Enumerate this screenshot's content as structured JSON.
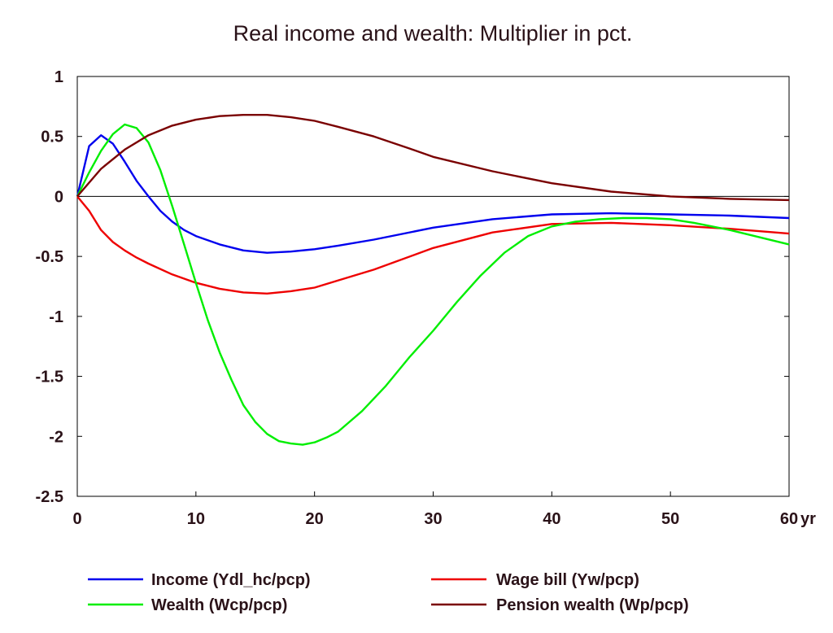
{
  "chart_data": {
    "type": "line",
    "title": "Real income and wealth: Multiplier in pct.",
    "xlabel": "",
    "ylabel": "",
    "x_unit_label": "yr",
    "xlim": [
      0,
      60
    ],
    "ylim": [
      -2.5,
      1
    ],
    "x_ticks": [
      "0",
      "10",
      "20",
      "30",
      "40",
      "50",
      "60"
    ],
    "y_ticks": [
      "1",
      "0.5",
      "0",
      "-0.5",
      "-1",
      "-1.5",
      "-2",
      "-2.5"
    ],
    "grid": false,
    "zero_line": true,
    "legend_position": "bottom",
    "series": [
      {
        "name": "Income (Ydl_hc/pcp)",
        "color": "#0000ee",
        "x": [
          0,
          1,
          2,
          3,
          4,
          5,
          6,
          7,
          8,
          9,
          10,
          12,
          14,
          16,
          18,
          20,
          22,
          25,
          30,
          35,
          40,
          45,
          50,
          55,
          60
        ],
        "y": [
          0,
          0.42,
          0.51,
          0.44,
          0.29,
          0.13,
          0.0,
          -0.12,
          -0.21,
          -0.28,
          -0.33,
          -0.4,
          -0.45,
          -0.47,
          -0.46,
          -0.44,
          -0.41,
          -0.36,
          -0.26,
          -0.19,
          -0.15,
          -0.14,
          -0.15,
          -0.16,
          -0.18
        ]
      },
      {
        "name": "Wage bill (Yw/pcp)",
        "color": "#ee0000",
        "x": [
          0,
          1,
          2,
          3,
          4,
          5,
          6,
          8,
          10,
          12,
          14,
          16,
          18,
          20,
          22,
          25,
          30,
          35,
          40,
          45,
          50,
          55,
          60
        ],
        "y": [
          0,
          -0.12,
          -0.28,
          -0.38,
          -0.45,
          -0.51,
          -0.56,
          -0.65,
          -0.72,
          -0.77,
          -0.8,
          -0.81,
          -0.79,
          -0.76,
          -0.7,
          -0.61,
          -0.43,
          -0.3,
          -0.23,
          -0.22,
          -0.24,
          -0.27,
          -0.31
        ]
      },
      {
        "name": "Wealth (Wcp/pcp)",
        "color": "#00ee00",
        "x": [
          0,
          1,
          2,
          3,
          4,
          5,
          6,
          7,
          8,
          9,
          10,
          11,
          12,
          13,
          14,
          15,
          16,
          17,
          18,
          19,
          20,
          21,
          22,
          24,
          26,
          28,
          30,
          32,
          34,
          36,
          38,
          40,
          42,
          44,
          46,
          48,
          50,
          52,
          55,
          60
        ],
        "y": [
          0,
          0.2,
          0.38,
          0.52,
          0.6,
          0.57,
          0.45,
          0.22,
          -0.08,
          -0.4,
          -0.72,
          -1.03,
          -1.3,
          -1.53,
          -1.74,
          -1.88,
          -1.98,
          -2.04,
          -2.06,
          -2.07,
          -2.05,
          -2.01,
          -1.96,
          -1.79,
          -1.58,
          -1.34,
          -1.12,
          -0.88,
          -0.66,
          -0.47,
          -0.33,
          -0.25,
          -0.21,
          -0.19,
          -0.18,
          -0.18,
          -0.19,
          -0.22,
          -0.28,
          -0.4
        ]
      },
      {
        "name": "Pension wealth (Wp/pcp)",
        "color": "#7a0000",
        "x": [
          0,
          2,
          4,
          6,
          8,
          10,
          12,
          14,
          16,
          18,
          20,
          22,
          25,
          28,
          30,
          35,
          40,
          45,
          50,
          55,
          60
        ],
        "y": [
          0,
          0.23,
          0.39,
          0.51,
          0.59,
          0.64,
          0.67,
          0.68,
          0.68,
          0.66,
          0.63,
          0.58,
          0.5,
          0.4,
          0.33,
          0.21,
          0.11,
          0.04,
          0.0,
          -0.02,
          -0.03
        ]
      }
    ]
  }
}
